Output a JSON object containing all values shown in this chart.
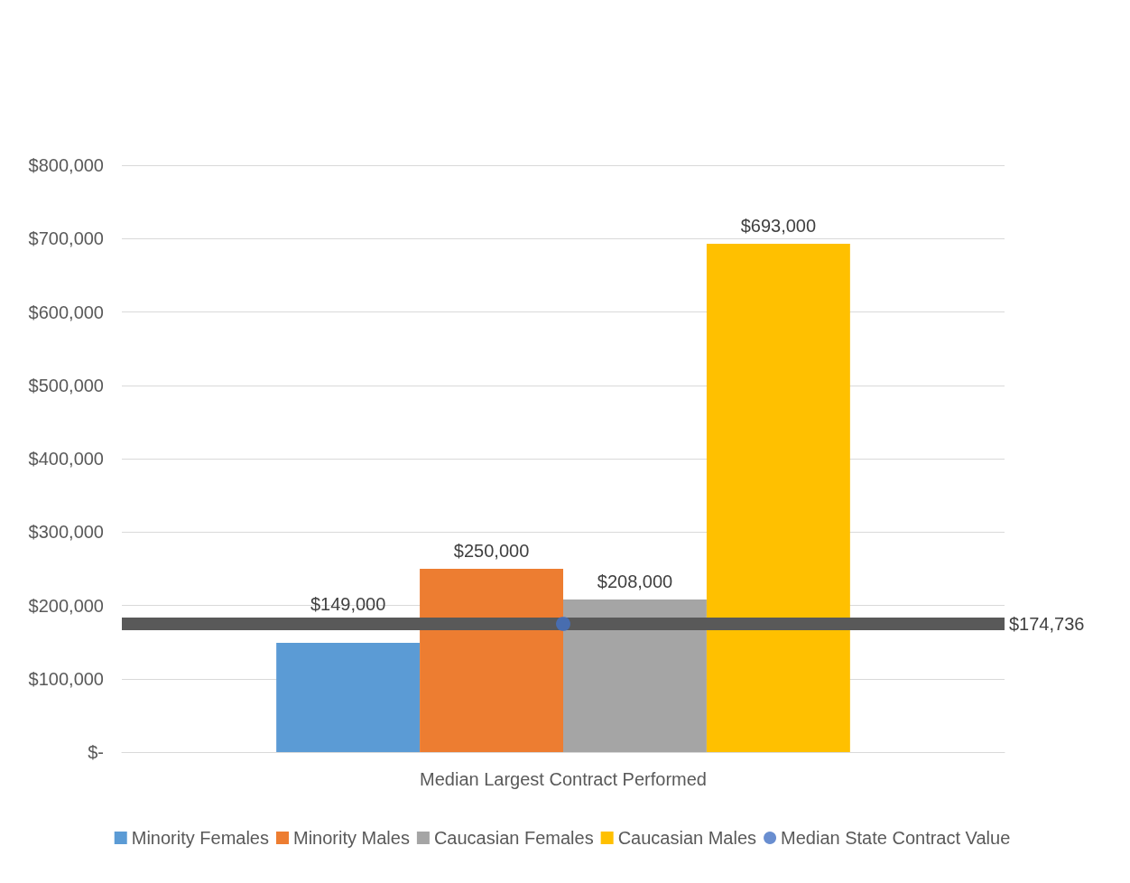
{
  "chart_data": {
    "type": "bar",
    "categories": [
      "Median Largest Contract Performed"
    ],
    "series": [
      {
        "name": "Minority Females",
        "color": "#5b9bd5",
        "values": [
          149000
        ],
        "value_labels": [
          "$149,000"
        ]
      },
      {
        "name": "Minority Males",
        "color": "#ed7d31",
        "values": [
          250000
        ],
        "value_labels": [
          "$250,000"
        ]
      },
      {
        "name": "Caucasian Females",
        "color": "#a5a5a5",
        "values": [
          208000
        ],
        "value_labels": [
          "$208,000"
        ]
      },
      {
        "name": "Caucasian Males",
        "color": "#ffc000",
        "values": [
          693000
        ],
        "value_labels": [
          "$693,000"
        ]
      },
      {
        "name": "Median State Contract Value",
        "type": "scatter",
        "color": "#4472c4",
        "values": [
          174736
        ]
      }
    ],
    "ref_lines": [
      {
        "axis": "y",
        "value": 174736,
        "label": "$174,736",
        "color": "#595959"
      }
    ],
    "ylim": [
      0,
      800000
    ],
    "yticks": [
      {
        "value": 0,
        "label": "$-"
      },
      {
        "value": 100000,
        "label": "$100,000"
      },
      {
        "value": 200000,
        "label": "$200,000"
      },
      {
        "value": 300000,
        "label": "$300,000"
      },
      {
        "value": 400000,
        "label": "$400,000"
      },
      {
        "value": 500000,
        "label": "$500,000"
      },
      {
        "value": 600000,
        "label": "$600,000"
      },
      {
        "value": 700000,
        "label": "$700,000"
      },
      {
        "value": 800000,
        "label": "$800,000"
      }
    ],
    "grid": "y",
    "legend": "bottom",
    "marker": "circle"
  }
}
